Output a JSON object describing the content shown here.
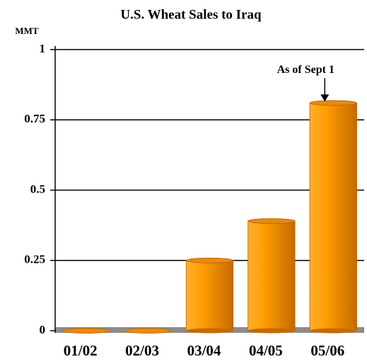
{
  "chart_data": {
    "type": "bar",
    "title": "U.S. Wheat Sales to Iraq",
    "y_label": "MMT",
    "categories": [
      "01/02",
      "02/03",
      "03/04",
      "04/05",
      "05/06"
    ],
    "values": [
      0,
      0,
      0.25,
      0.39,
      0.81
    ],
    "color": "#ff9900",
    "ylim": [
      0,
      1
    ],
    "yticks": [
      0,
      0.25,
      0.5,
      0.75,
      1
    ],
    "grid": true,
    "annotation": "As of Sept 1"
  }
}
